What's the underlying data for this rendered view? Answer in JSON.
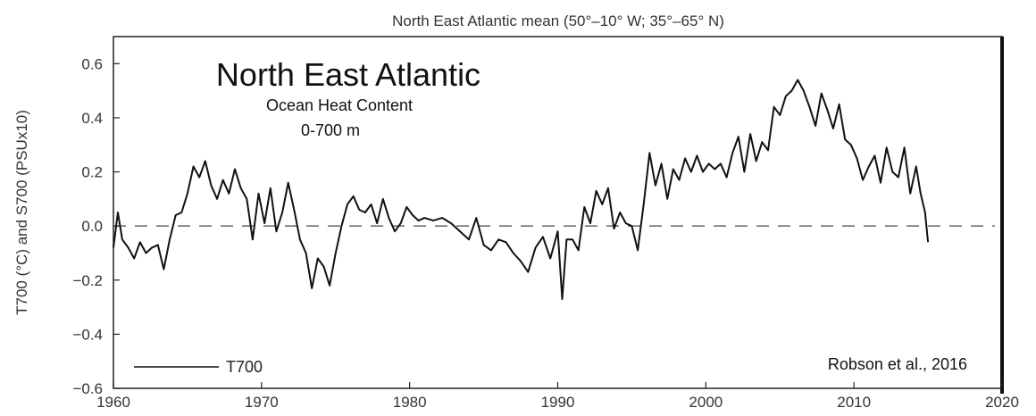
{
  "chart_data": {
    "type": "line",
    "title": "North East Atlantic mean (50°–10° W; 35°–65° N)",
    "inset_title": "North East Atlantic",
    "inset_subtitle_1": "Ocean Heat Content",
    "inset_subtitle_2": "0-700 m",
    "ylabel": "T700 (°C) and S700 (PSUx10)",
    "xlabel": "",
    "xlim": [
      1960,
      2020
    ],
    "ylim": [
      -0.6,
      0.7
    ],
    "x_ticks": [
      "1960",
      "1970",
      "1980",
      "1990",
      "2000",
      "2010",
      "2020"
    ],
    "y_ticks": [
      "0.6",
      "0.4",
      "0.2",
      "0.0",
      "−0.2",
      "−0.4",
      "−0.6"
    ],
    "y_tick_values": [
      0.6,
      0.4,
      0.2,
      0.0,
      -0.2,
      -0.4,
      -0.6
    ],
    "x_tick_values": [
      1960,
      1970,
      1980,
      1990,
      2000,
      2010,
      2020
    ],
    "reference_line": 0.0,
    "legend": "T700",
    "legend_placement": "bottom-left",
    "credit": "Robson et al., 2016",
    "grid": false,
    "colors": {
      "line": "#111111",
      "axis": "#222222",
      "reference": "#444444"
    },
    "series": [
      {
        "name": "T700",
        "x": [
          1960.0,
          1960.3,
          1960.6,
          1961.0,
          1961.4,
          1961.8,
          1962.2,
          1962.6,
          1963.0,
          1963.4,
          1963.8,
          1964.2,
          1964.6,
          1965.0,
          1965.4,
          1965.8,
          1966.2,
          1966.6,
          1967.0,
          1967.4,
          1967.8,
          1968.2,
          1968.6,
          1969.0,
          1969.4,
          1969.8,
          1970.2,
          1970.6,
          1971.0,
          1971.4,
          1971.8,
          1972.2,
          1972.6,
          1973.0,
          1973.4,
          1973.8,
          1974.2,
          1974.6,
          1975.0,
          1975.4,
          1975.8,
          1976.2,
          1976.6,
          1977.0,
          1977.4,
          1977.8,
          1978.2,
          1978.6,
          1979.0,
          1979.4,
          1979.8,
          1980.2,
          1980.6,
          1981.0,
          1981.6,
          1982.2,
          1982.8,
          1983.4,
          1984.0,
          1984.5,
          1985.0,
          1985.5,
          1986.0,
          1986.5,
          1987.0,
          1987.5,
          1988.0,
          1988.5,
          1989.0,
          1989.5,
          1990.0,
          1990.3,
          1990.6,
          1991.0,
          1991.4,
          1991.8,
          1992.2,
          1992.6,
          1993.0,
          1993.4,
          1993.8,
          1994.2,
          1994.6,
          1995.0,
          1995.4,
          1995.8,
          1996.2,
          1996.6,
          1997.0,
          1997.4,
          1997.8,
          1998.2,
          1998.6,
          1999.0,
          1999.4,
          1999.8,
          2000.2,
          2000.6,
          2001.0,
          2001.4,
          2001.8,
          2002.2,
          2002.6,
          2003.0,
          2003.4,
          2003.8,
          2004.2,
          2004.6,
          2005.0,
          2005.4,
          2005.8,
          2006.2,
          2006.6,
          2007.0,
          2007.4,
          2007.8,
          2008.2,
          2008.6,
          2009.0,
          2009.4,
          2009.8,
          2010.2,
          2010.6,
          2011.0,
          2011.4,
          2011.8,
          2012.2,
          2012.6,
          2013.0,
          2013.4,
          2013.8,
          2014.2,
          2014.5,
          2014.8,
          2015.0
        ],
        "values": [
          -0.08,
          0.05,
          -0.05,
          -0.08,
          -0.12,
          -0.06,
          -0.1,
          -0.08,
          -0.07,
          -0.16,
          -0.05,
          0.04,
          0.05,
          0.12,
          0.22,
          0.18,
          0.24,
          0.15,
          0.1,
          0.17,
          0.12,
          0.21,
          0.14,
          0.1,
          -0.05,
          0.12,
          0.01,
          0.14,
          -0.02,
          0.05,
          0.16,
          0.06,
          -0.05,
          -0.1,
          -0.23,
          -0.12,
          -0.15,
          -0.22,
          -0.1,
          0.0,
          0.08,
          0.11,
          0.06,
          0.05,
          0.08,
          0.01,
          0.1,
          0.03,
          -0.02,
          0.01,
          0.07,
          0.04,
          0.02,
          0.03,
          0.02,
          0.03,
          0.01,
          -0.02,
          -0.05,
          0.03,
          -0.07,
          -0.09,
          -0.05,
          -0.06,
          -0.1,
          -0.13,
          -0.17,
          -0.08,
          -0.04,
          -0.12,
          -0.02,
          -0.27,
          -0.05,
          -0.05,
          -0.09,
          0.07,
          0.01,
          0.13,
          0.08,
          0.14,
          -0.01,
          0.05,
          0.01,
          0.0,
          -0.09,
          0.08,
          0.27,
          0.15,
          0.23,
          0.1,
          0.21,
          0.17,
          0.25,
          0.2,
          0.26,
          0.2,
          0.23,
          0.21,
          0.23,
          0.18,
          0.27,
          0.33,
          0.2,
          0.34,
          0.24,
          0.31,
          0.28,
          0.44,
          0.41,
          0.48,
          0.5,
          0.54,
          0.5,
          0.44,
          0.37,
          0.49,
          0.43,
          0.36,
          0.45,
          0.32,
          0.3,
          0.25,
          0.17,
          0.22,
          0.26,
          0.16,
          0.29,
          0.2,
          0.18,
          0.29,
          0.12,
          0.22,
          0.12,
          0.05,
          -0.06
        ]
      }
    ]
  }
}
